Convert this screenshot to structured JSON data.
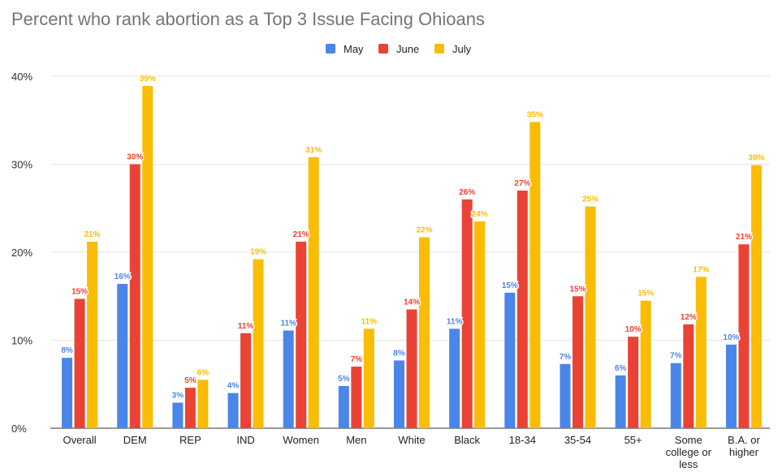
{
  "chart_data": {
    "type": "bar",
    "title": "Percent who rank abortion as a Top 3 Issue Facing Ohioans",
    "categories": [
      [
        "Overall"
      ],
      [
        "DEM"
      ],
      [
        "REP"
      ],
      [
        "IND"
      ],
      [
        "Women"
      ],
      [
        "Men"
      ],
      [
        "White"
      ],
      [
        "Black"
      ],
      [
        "18-34"
      ],
      [
        "35-54"
      ],
      [
        "55+"
      ],
      [
        "Some",
        "college or",
        "less"
      ],
      [
        "B.A. or",
        "higher"
      ]
    ],
    "series": [
      {
        "name": "May",
        "color": "#4a86e8",
        "values": [
          8,
          16.4,
          2.9,
          4,
          11.1,
          4.8,
          7.7,
          11.3,
          15.4,
          7.3,
          6,
          7.4,
          9.5
        ],
        "labels": [
          "8%",
          "16%",
          "3%",
          "4%",
          "11%",
          "5%",
          "8%",
          "11%",
          "15%",
          "7%",
          "6%",
          "7%",
          "10%"
        ]
      },
      {
        "name": "June",
        "color": "#ea4335",
        "values": [
          14.7,
          30,
          4.6,
          10.8,
          21.2,
          7,
          13.5,
          26,
          27,
          15,
          10.4,
          11.8,
          20.9
        ],
        "labels": [
          "15%",
          "30%",
          "5%",
          "11%",
          "21%",
          "7%",
          "14%",
          "26%",
          "27%",
          "15%",
          "10%",
          "12%",
          "21%"
        ]
      },
      {
        "name": "July",
        "color": "#fbbc04",
        "values": [
          21.2,
          38.9,
          5.5,
          19.2,
          30.8,
          11.3,
          21.7,
          23.5,
          34.8,
          25.2,
          14.5,
          17.2,
          29.9
        ],
        "labels": [
          "21%",
          "39%",
          "6%",
          "19%",
          "31%",
          "11%",
          "22%",
          "24%",
          "35%",
          "25%",
          "15%",
          "17%",
          "30%"
        ]
      }
    ],
    "ylim": [
      0,
      40
    ],
    "yticks": [
      0,
      10,
      20,
      30,
      40
    ],
    "ytick_labels": [
      "0%",
      "10%",
      "20%",
      "30%",
      "40%"
    ],
    "xlabel": "",
    "ylabel": "",
    "legend": "top-center",
    "grid": true
  }
}
